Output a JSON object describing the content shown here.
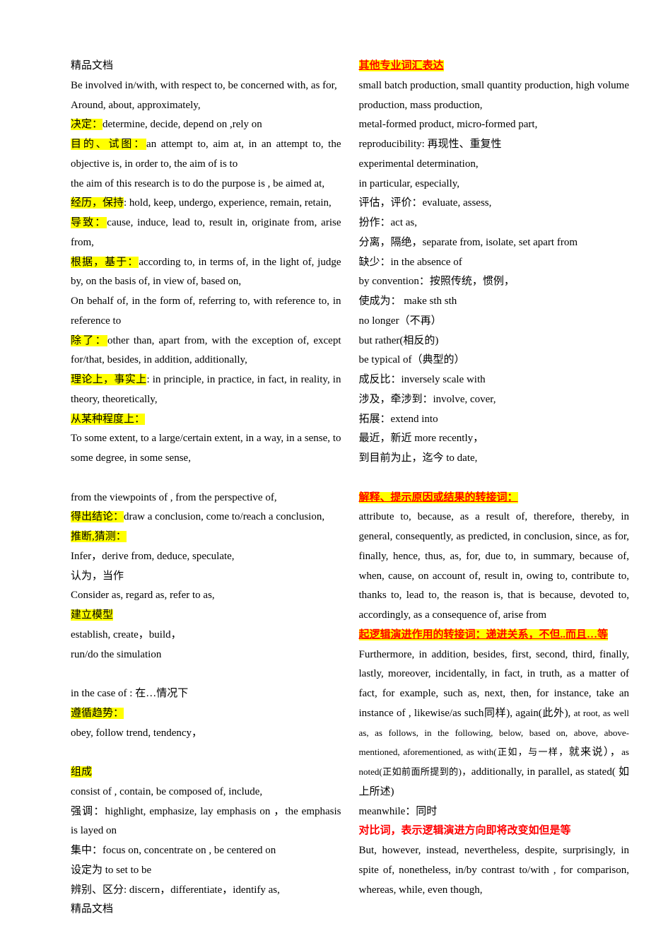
{
  "header": "精品文档",
  "footer": "精品文档",
  "col1": {
    "p1": "Be involved in/with, with respect to, be concerned with, as for,",
    "p2": "Around, about, approximately,",
    "p3_hl": "决定：",
    "p3_txt": "determine, decide, depend on ,rely on",
    "p4_hl": "目的、试图：",
    "p4_txt": "an attempt to, aim at, in an attempt to, the objective is, in order to, the aim of is to",
    "p5": "the aim of this research is to do    the purpose is    , be aimed at,",
    "p6_hl": "经历，保持",
    "p6_txt": ": hold, keep, undergo, experience, remain, retain,",
    "p7_hl": "导致：",
    "p7_txt": "cause, induce, lead to, result in, originate from, arise from,",
    "p8_hl": "根据，基于：",
    "p8_txt": "according to, in terms of, in the light of, judge by, on the basis of, in view of, based on,",
    "p9": "On behalf of, in the form of, referring to, with reference to, in reference to",
    "p10_hl": "除了：",
    "p10_txt": "other than, apart from, with the exception of, except for/that, besides, in addition, additionally,",
    "p11_hl": "理论上，事实上",
    "p11_txt": ": in principle, in practice, in fact, in reality, in theory, theoretically,",
    "p12_hl": "从某种程度上：",
    "p13": "To some extent, to a large/certain extent, in a way, in a sense, to some degree, in some sense,",
    "p14": "from the viewpoints of , from the perspective of,",
    "p15_hl": "得出结论：",
    "p15_txt": "draw a conclusion, come to/reach a conclusion,",
    "p16_hl": "推断,猜测：",
    "p17": "Infer，derive from, deduce, speculate,",
    "p18": "认为，当作",
    "p19": "Consider as, regard as, refer to as,",
    "p20_hl": "建立模型",
    "p21": "establish, create，build，",
    "p22": "run/do the simulation",
    "p23": "in the case of :  在…情况下",
    "p24_hl": "遵循趋势：",
    "p25": "obey, follow trend, tendency，",
    "p26_hl": "组成",
    "p27": "consist of , contain, be composed of, include,",
    "p28": "强调：highlight, emphasize, lay emphasis on ，the emphasis is layed on",
    "p29": "集中：focus on, concentrate on ,  be centered on",
    "p30": "设定为 to set to be",
    "p31": "辨别、区分:  discern，differentiate，identify as,"
  },
  "col2": {
    "p1_hl": "其他专业词汇表达",
    "p2": "small batch production, small quantity production, high volume production, mass production,",
    "p3": "metal-formed product, micro-formed part,",
    "p4": "reproducibility:  再现性、重复性",
    "p5": "experimental determination,",
    "p6": "in particular, especially,",
    "p7": "评估，评价：evaluate, assess,",
    "p8": "扮作：act as,",
    "p9": "分离，隔绝，separate from, isolate, set apart from",
    "p10": "缺少：in the absence of",
    "p11": "by convention：按照传统，惯例，",
    "p12": "使成为：  make sth sth",
    "p13": "no longer（不再）",
    "p14": "but rather(相反的)",
    "p15": "be typical of（典型的）",
    "p16": "成反比：inversely scale with",
    "p17": "涉及，牵涉到：involve, cover,",
    "p18": "拓展：extend into",
    "p19": "最近，新近 more recently，",
    "p20": "到目前为止，迄今 to date,",
    "p21_hl": "解释、提示原因或结果的转接词：",
    "p22": "attribute to, because, as a result of, therefore, thereby, in general, consequently,  as predicted, in conclusion, since, as for, finally, hence, thus, as, for, due to, in summary, because of, when, cause, on account of, result in, owing to, contribute to, thanks to, lead to, the reason is, that is because, devoted to, accordingly, as a consequence of, arise from",
    "p23_hl": "起逻辑演进作用的转接词：递进关系，不但..而且…等",
    "p24a": "Furthermore, in addition, besides, first, second, third, finally, lastly, moreover, incidentally, in fact, in truth, as a matter of fact, for example, such as, next, then, for instance, take an instance of , likewise/as such同样), again(此外), ",
    "p24b": "at root, as well as, as follows, in the following, below, based on, above, above-mentioned, aforementioned, as with(正如，与一样，",
    "p24c": "就来说），",
    "p24d": "as noted(正如前面所提到的)，",
    "p24e": "additionally,    in parallel, as stated(  如上所述)",
    "p25": "meanwhile：同时",
    "p26_red": "对比词，表示逻辑演进方向即将改变如但是等",
    "p27": "But, however, instead, nevertheless, despite, surprisingly, in spite of, nonetheless, in/by contrast to/with , for comparison, whereas, while, even though,"
  }
}
